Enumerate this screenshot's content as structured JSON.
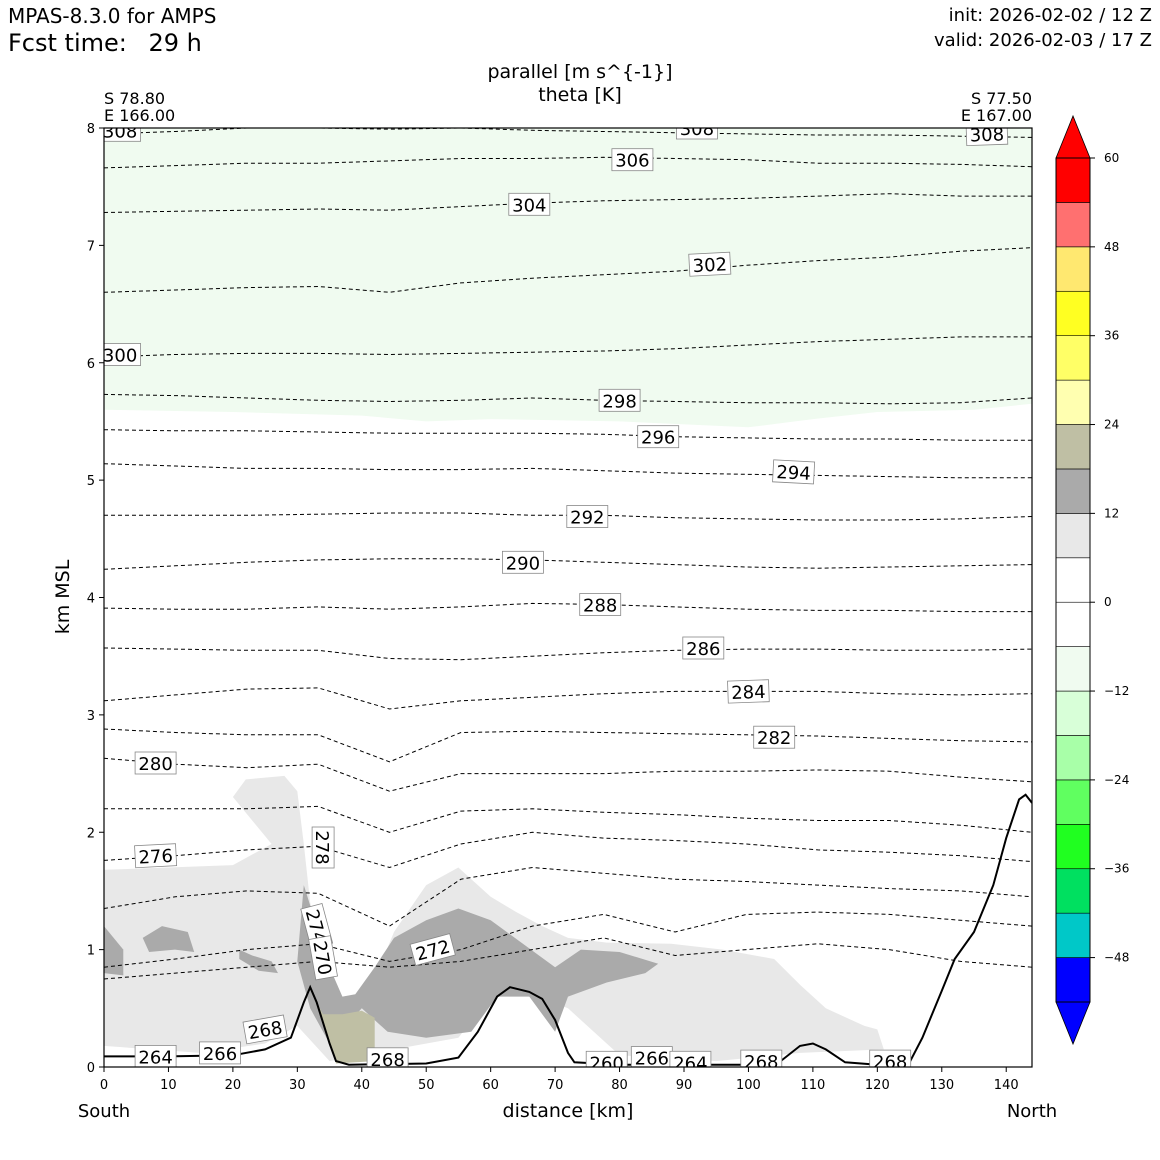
{
  "header": {
    "model": "MPAS-8.3.0 for AMPS",
    "fcst_label": "Fcst time:",
    "fcst_value": "29 h",
    "init": "init: 2026-02-02 / 12 Z",
    "valid": "valid: 2026-02-03 / 17 Z"
  },
  "chart_data": {
    "type": "cross-section",
    "title_line1": "parallel [m s^{-1}]",
    "title_line2": "theta [K]",
    "left_point": {
      "lat": "S 78.80",
      "lon": "E 166.00"
    },
    "right_point": {
      "lat": "S 77.50",
      "lon": "E 167.00"
    },
    "xlabel": "distance [km]",
    "ylabel": "km MSL",
    "x_end_labels": {
      "left": "South",
      "right": "North"
    },
    "xlim": [
      0,
      144
    ],
    "ylim": [
      0,
      8
    ],
    "xticks": [
      0,
      10,
      20,
      30,
      40,
      50,
      60,
      70,
      80,
      90,
      100,
      110,
      120,
      130,
      140
    ],
    "yticks": [
      0,
      1,
      2,
      3,
      4,
      5,
      6,
      7,
      8
    ],
    "terrain": [
      [
        0,
        0.09
      ],
      [
        10,
        0.09
      ],
      [
        20,
        0.1
      ],
      [
        25,
        0.15
      ],
      [
        29,
        0.25
      ],
      [
        31,
        0.55
      ],
      [
        32,
        0.68
      ],
      [
        33,
        0.55
      ],
      [
        35,
        0.2
      ],
      [
        36,
        0.05
      ],
      [
        38,
        0.02
      ],
      [
        50,
        0.03
      ],
      [
        55,
        0.08
      ],
      [
        58,
        0.3
      ],
      [
        61,
        0.6
      ],
      [
        63,
        0.68
      ],
      [
        66,
        0.64
      ],
      [
        68,
        0.58
      ],
      [
        70,
        0.4
      ],
      [
        72,
        0.12
      ],
      [
        73,
        0.04
      ],
      [
        80,
        0.02
      ],
      [
        100,
        0.02
      ],
      [
        105,
        0.05
      ],
      [
        108,
        0.18
      ],
      [
        110,
        0.2
      ],
      [
        112,
        0.15
      ],
      [
        115,
        0.04
      ],
      [
        120,
        0.02
      ],
      [
        125,
        0.04
      ],
      [
        127,
        0.25
      ],
      [
        130,
        0.65
      ],
      [
        132,
        0.92
      ],
      [
        135,
        1.15
      ],
      [
        138,
        1.55
      ],
      [
        140,
        1.95
      ],
      [
        142,
        2.28
      ],
      [
        143,
        2.32
      ],
      [
        144,
        2.25
      ]
    ],
    "theta_isentropes": [
      {
        "level": 308,
        "y": [
          7.95,
          7.97,
          8.0,
          8.0,
          7.99,
          8.0,
          7.98,
          7.97,
          7.96,
          7.95,
          7.94,
          7.94,
          7.93,
          7.92
        ]
      },
      {
        "level": 306,
        "y": [
          7.66,
          7.68,
          7.7,
          7.7,
          7.72,
          7.74,
          7.74,
          7.75,
          7.74,
          7.73,
          7.7,
          7.7,
          7.69,
          7.67
        ]
      },
      {
        "level": 304,
        "y": [
          7.28,
          7.29,
          7.3,
          7.31,
          7.3,
          7.33,
          7.36,
          7.38,
          7.39,
          7.4,
          7.42,
          7.44,
          7.42,
          7.42
        ]
      },
      {
        "level": 302,
        "y": [
          6.6,
          6.62,
          6.64,
          6.65,
          6.6,
          6.68,
          6.72,
          6.75,
          6.78,
          6.83,
          6.87,
          6.9,
          6.95,
          6.98
        ]
      },
      {
        "level": 300,
        "y": [
          6.05,
          6.07,
          6.08,
          6.08,
          6.07,
          6.08,
          6.09,
          6.1,
          6.12,
          6.15,
          6.18,
          6.2,
          6.22,
          6.22
        ]
      },
      {
        "level": 298,
        "y": [
          5.73,
          5.72,
          5.7,
          5.68,
          5.67,
          5.68,
          5.7,
          5.68,
          5.67,
          5.66,
          5.66,
          5.65,
          5.66,
          5.7
        ]
      },
      {
        "level": 296,
        "y": [
          5.43,
          5.42,
          5.42,
          5.41,
          5.4,
          5.4,
          5.4,
          5.39,
          5.37,
          5.36,
          5.35,
          5.35,
          5.34,
          5.34
        ]
      },
      {
        "level": 294,
        "y": [
          5.14,
          5.12,
          5.1,
          5.1,
          5.09,
          5.09,
          5.1,
          5.08,
          5.06,
          5.05,
          5.04,
          5.03,
          5.02,
          5.02
        ]
      },
      {
        "level": 292,
        "y": [
          4.7,
          4.7,
          4.7,
          4.71,
          4.72,
          4.72,
          4.7,
          4.7,
          4.68,
          4.67,
          4.66,
          4.66,
          4.67,
          4.69
        ]
      },
      {
        "level": 290,
        "y": [
          4.24,
          4.27,
          4.3,
          4.32,
          4.33,
          4.33,
          4.32,
          4.3,
          4.28,
          4.26,
          4.25,
          4.26,
          4.27,
          4.28
        ]
      },
      {
        "level": 288,
        "y": [
          3.91,
          3.9,
          3.9,
          3.92,
          3.9,
          3.92,
          3.95,
          3.94,
          3.92,
          3.9,
          3.89,
          3.89,
          3.88,
          3.88
        ]
      },
      {
        "level": 286,
        "y": [
          3.57,
          3.56,
          3.55,
          3.55,
          3.48,
          3.47,
          3.5,
          3.53,
          3.55,
          3.56,
          3.56,
          3.55,
          3.55,
          3.56
        ]
      },
      {
        "level": 284,
        "y": [
          3.12,
          3.17,
          3.22,
          3.23,
          3.05,
          3.12,
          3.15,
          3.18,
          3.2,
          3.2,
          3.2,
          3.18,
          3.17,
          3.18
        ]
      },
      {
        "level": 282,
        "y": [
          2.88,
          2.85,
          2.83,
          2.83,
          2.6,
          2.85,
          2.86,
          2.85,
          2.84,
          2.83,
          2.82,
          2.8,
          2.78,
          2.77
        ]
      },
      {
        "level": 280,
        "y": [
          2.63,
          2.58,
          2.55,
          2.58,
          2.35,
          2.5,
          2.5,
          2.5,
          2.52,
          2.52,
          2.53,
          2.52,
          2.47,
          2.43
        ]
      },
      {
        "level": 278,
        "y": [
          2.2,
          2.2,
          2.2,
          2.22,
          2.0,
          2.18,
          2.2,
          2.17,
          2.15,
          2.12,
          2.1,
          2.1,
          2.06,
          2.0
        ]
      },
      {
        "level": 276,
        "y": [
          1.76,
          1.8,
          1.85,
          1.88,
          1.7,
          1.9,
          2.0,
          1.95,
          1.93,
          1.9,
          1.85,
          1.83,
          1.8,
          1.75
        ]
      },
      {
        "level": 274,
        "y": [
          1.35,
          1.45,
          1.5,
          1.48,
          1.2,
          1.6,
          1.7,
          1.65,
          1.6,
          1.58,
          1.55,
          1.52,
          1.5,
          1.45
        ]
      },
      {
        "level": 272,
        "y": [
          0.85,
          0.92,
          1.0,
          1.05,
          0.9,
          1.0,
          1.2,
          1.3,
          1.15,
          1.3,
          1.32,
          1.3,
          1.25,
          1.2
        ]
      },
      {
        "level": 270,
        "y": [
          0.75,
          0.8,
          0.85,
          0.9,
          0.85,
          0.9,
          1.0,
          1.1,
          0.95,
          1.0,
          1.05,
          1.0,
          0.9,
          0.85
        ]
      }
    ],
    "contour_labels": [
      "308",
      "306",
      "304",
      "302",
      "300",
      "298",
      "296",
      "294",
      "292",
      "290",
      "288",
      "286",
      "284",
      "282",
      "280",
      "278",
      "276",
      "274",
      "272",
      "270",
      "268",
      "266",
      "264",
      "260"
    ],
    "colorbar": {
      "levels": [
        -54,
        -48,
        -42,
        -36,
        -30,
        -24,
        -18,
        -12,
        -6,
        0,
        6,
        12,
        18,
        24,
        30,
        36,
        42,
        48,
        54,
        60
      ],
      "colors": [
        "#0000ff",
        "#00c8c8",
        "#00e060",
        "#20ff20",
        "#60ff60",
        "#a8ffa8",
        "#d8ffd8",
        "#f0fbf0",
        "#ffffff",
        "#ffffff",
        "#e8e8e8",
        "#aaaaaa",
        "#bfbfa4",
        "#ffffb0",
        "#ffff66",
        "#ffff22",
        "#ffe870",
        "#ff7070",
        "#ff0000"
      ],
      "tick_labels": [
        "60",
        "48",
        "36",
        "24",
        "12",
        "0",
        "−12",
        "−24",
        "−36",
        "−48"
      ],
      "tick_values": [
        60,
        48,
        36,
        24,
        12,
        0,
        -12,
        -24,
        -36,
        -48
      ],
      "extend": "both"
    },
    "shaded_regions": [
      {
        "name": "light-green-upper",
        "value_range": [
          -12,
          -6
        ],
        "color": "#f0fbf0"
      },
      {
        "name": "light-gray-lower",
        "value_range": [
          6,
          12
        ],
        "color": "#e8e8e8"
      },
      {
        "name": "dark-gray-core",
        "value_range": [
          12,
          18
        ],
        "color": "#aaaaaa"
      },
      {
        "name": "khaki-core",
        "value_range": [
          18,
          24
        ],
        "color": "#bfbfa4"
      }
    ]
  }
}
